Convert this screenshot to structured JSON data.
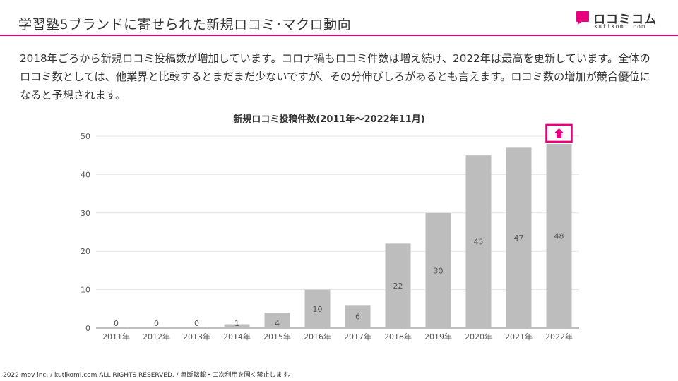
{
  "slide": {
    "title": "学習塾5ブランドに寄せられた新規ロコミ･マクロ動向",
    "description": "2018年ごろから新規ロコミ投稿数が増加しています。コロナ禍もロコミ件数は増え続け、2022年は最高を更新しています。全体のロコミ数としては、他業界と比較するとまだまだ少ないですが、その分伸びしろがあるとも言えます。ロコミ数の増加が競合優位になると予想されます。",
    "footer": "2022 mov inc. / kutikomi.com ALL RIGHTS RESERVED. / 無断転載・二次利用を固く禁止します。"
  },
  "logo": {
    "wordmark": "ロコミコム",
    "subtext": "kutikomi com",
    "mark_color": "#e6007e"
  },
  "colors": {
    "accent": "#e6007e",
    "bar": "#bdbdbd",
    "grid": "#e5e5e5",
    "text": "#333333"
  },
  "chart_data": {
    "type": "bar",
    "title": "新規ロコミ投稿件数(2011年〜2022年11月)",
    "xlabel": "",
    "ylabel": "",
    "categories": [
      "2011年",
      "2012年",
      "2013年",
      "2014年",
      "2015年",
      "2016年",
      "2017年",
      "2018年",
      "2019年",
      "2020年",
      "2021年",
      "2022年"
    ],
    "values": [
      0,
      0,
      0,
      1,
      4,
      10,
      6,
      22,
      30,
      45,
      47,
      48
    ],
    "ylim": [
      0,
      50
    ],
    "yticks": [
      0,
      10,
      20,
      30,
      40,
      50
    ],
    "grid": true,
    "legend": "none",
    "highlight_category": "2022年",
    "highlight_icon": "up-arrow-icon"
  }
}
